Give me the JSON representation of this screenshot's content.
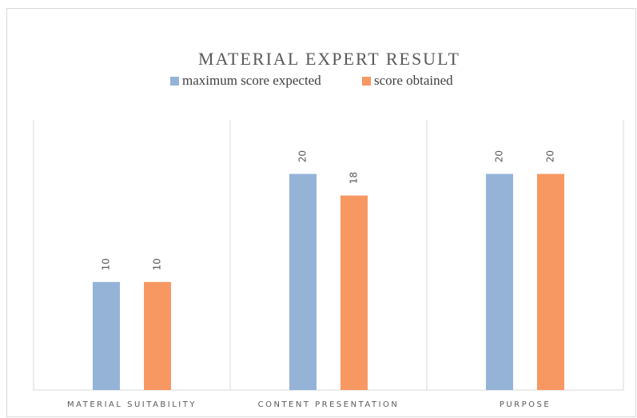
{
  "chart_data": {
    "type": "bar",
    "title": "MATERIAL EXPERT RESULT",
    "categories": [
      "MATERIAL SUITABILITY",
      "CONTENT PRESENTATION",
      "PURPOSE"
    ],
    "series": [
      {
        "name": "maximum score expected",
        "color": "#95b3d7",
        "values": [
          10,
          20,
          20
        ]
      },
      {
        "name": "score obtained",
        "color": "#f79862",
        "values": [
          10,
          18,
          20
        ]
      }
    ],
    "ylim": [
      0,
      25
    ],
    "legend": "top"
  }
}
